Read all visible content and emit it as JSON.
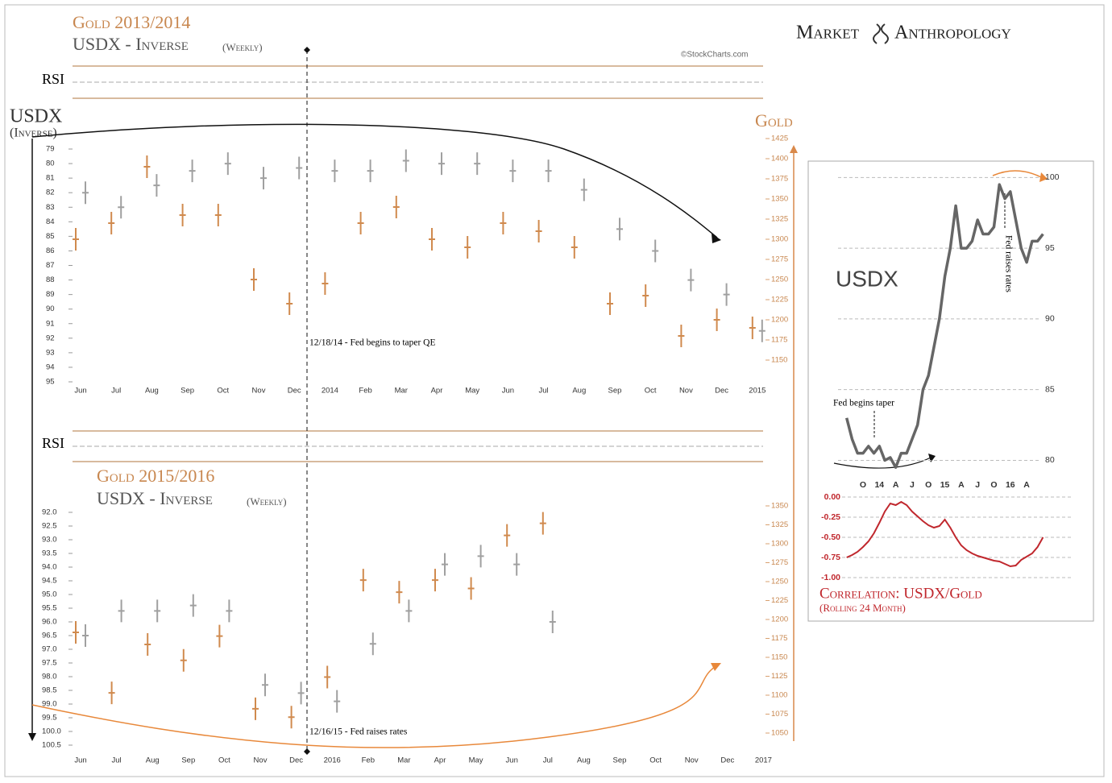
{
  "header": {
    "brand_left": "Market",
    "brand_right": "Anthropology",
    "credit": "©StockCharts.com"
  },
  "chart_data": [
    {
      "type": "price",
      "title": "Gold 2013/2014",
      "subtitle": "USDX - Inverse",
      "subtitle_note": "(Weekly)",
      "rsi_label": "RSI",
      "ylabel": "USDX",
      "ylabel_note": "(Inverse)",
      "y2label": "Gold",
      "categories": [
        "Jun",
        "Jul",
        "Aug",
        "Sep",
        "Oct",
        "Nov",
        "Dec",
        "2014",
        "Feb",
        "Mar",
        "Apr",
        "May",
        "Jun",
        "Jul",
        "Aug",
        "Sep",
        "Oct",
        "Nov",
        "Dec",
        "2015"
      ],
      "ylim": [
        95,
        79
      ],
      "yticks": [
        79,
        80,
        81,
        82,
        83,
        84,
        85,
        86,
        87,
        88,
        89,
        90,
        91,
        92,
        93,
        94,
        95
      ],
      "y2lim": [
        1150,
        1425
      ],
      "y2ticks": [
        1150,
        1175,
        1200,
        1225,
        1250,
        1275,
        1300,
        1325,
        1350,
        1375,
        1400,
        1425
      ],
      "series": [
        {
          "color": "#d08a4e",
          "axis": "y2",
          "values": [
            1300,
            1320,
            1390,
            1330,
            1330,
            1250,
            1220,
            1245,
            1320,
            1340,
            1300,
            1290,
            1320,
            1310,
            1290,
            1220,
            1230,
            1180,
            1200,
            1190
          ]
        },
        {
          "color": "#a0a0a0",
          "values": [
            82,
            83,
            81.5,
            80.5,
            80,
            81,
            80.3,
            80.5,
            80.5,
            79.8,
            80,
            80,
            80.5,
            80.5,
            81.8,
            84.5,
            86,
            88,
            89,
            91.5
          ]
        }
      ],
      "annotations": [
        "12/18/14 - Fed begins to taper QE"
      ]
    },
    {
      "type": "price",
      "title": "Gold 2015/2016",
      "subtitle": "USDX - Inverse",
      "subtitle_note": "(Weekly)",
      "rsi_label": "RSI",
      "categories": [
        "Jun",
        "Jul",
        "Aug",
        "Sep",
        "Oct",
        "Nov",
        "Dec",
        "2016",
        "Feb",
        "Mar",
        "Apr",
        "May",
        "Jun",
        "Jul",
        "Aug",
        "Sep",
        "Oct",
        "Nov",
        "Dec",
        "2017"
      ],
      "ylim": [
        100.5,
        92
      ],
      "yticks": [
        {
          "value": 92,
          "label": "92.0"
        },
        92.5,
        {
          "value": 93,
          "label": "93.0"
        },
        93.5,
        {
          "value": 94,
          "label": "94.0"
        },
        94.5,
        {
          "value": 95,
          "label": "95.0"
        },
        95.5,
        {
          "value": 96,
          "label": "96.0"
        },
        96.5,
        {
          "value": 97,
          "label": "97.0"
        },
        97.5,
        {
          "value": 98,
          "label": "98.0"
        },
        98.5,
        {
          "value": 99,
          "label": "99.0"
        },
        99.5,
        {
          "value": 100,
          "label": "100.0"
        },
        100.5
      ],
      "y2lim": [
        1050,
        1350
      ],
      "y2ticks": [
        1050,
        1075,
        1100,
        1125,
        1150,
        1175,
        1200,
        1225,
        1250,
        1275,
        1300,
        1325,
        1350
      ],
      "series": [
        {
          "color": "#d08a4e",
          "axis": "y2",
          "values": [
            1183,
            1103,
            1167,
            1146,
            1178,
            1082,
            1071,
            1124,
            1252,
            1236,
            1252,
            1241,
            1311,
            1327,
            null,
            null,
            null,
            null,
            null,
            null
          ]
        },
        {
          "color": "#a0a0a0",
          "values": [
            96.5,
            95.6,
            95.6,
            95.4,
            95.6,
            98.3,
            98.6,
            98.9,
            96.8,
            95.6,
            93.9,
            93.6,
            93.9,
            96.0,
            null,
            null,
            null,
            null,
            null,
            null
          ]
        }
      ],
      "annotations": [
        "12/16/15 - Fed raises rates"
      ]
    },
    {
      "type": "line",
      "title": "USDX",
      "categories": [
        null,
        null,
        null,
        "O",
        null,
        null,
        "14",
        null,
        null,
        "A",
        null,
        null,
        "J",
        null,
        null,
        "O",
        null,
        null,
        "15",
        null,
        null,
        "A",
        null,
        null,
        "J",
        null,
        null,
        "O",
        null,
        null,
        "16",
        null,
        null,
        "A",
        null,
        null,
        null
      ],
      "ylim": [
        79,
        101.5
      ],
      "yticks": [
        80,
        85,
        90,
        95,
        100
      ],
      "color": "#666666",
      "values": [
        83,
        81.5,
        80.5,
        80.5,
        81,
        80.5,
        81,
        80,
        80.2,
        79.5,
        80.5,
        80.5,
        81.5,
        82.5,
        85,
        86,
        88,
        90,
        93,
        95,
        98,
        95,
        95,
        95.5,
        97,
        96,
        96,
        96.5,
        99.5,
        98.5,
        99,
        97,
        95,
        94,
        95.5,
        95.5,
        96
      ],
      "annotations": [
        "Fed begins taper",
        "Fed raises rates"
      ]
    },
    {
      "type": "line",
      "title": "Correlation: USDX/Gold",
      "subtitle": "(Rolling 24 Month)",
      "ylim": [
        -1,
        0
      ],
      "yticks": [
        {
          "value": 0,
          "label": "0.00"
        },
        -0.25,
        {
          "value": -0.5,
          "label": "-0.50"
        },
        -0.75,
        {
          "value": -1,
          "label": "-1.00"
        }
      ],
      "color": "#c0272d",
      "values": [
        -0.75,
        -0.72,
        -0.68,
        -0.62,
        -0.55,
        -0.45,
        -0.32,
        -0.18,
        -0.08,
        -0.1,
        -0.06,
        -0.1,
        -0.18,
        -0.24,
        -0.3,
        -0.35,
        -0.38,
        -0.36,
        -0.28,
        -0.38,
        -0.5,
        -0.6,
        -0.66,
        -0.7,
        -0.73,
        -0.75,
        -0.77,
        -0.79,
        -0.8,
        -0.83,
        -0.86,
        -0.85,
        -0.78,
        -0.74,
        -0.7,
        -0.62,
        -0.5
      ]
    }
  ]
}
